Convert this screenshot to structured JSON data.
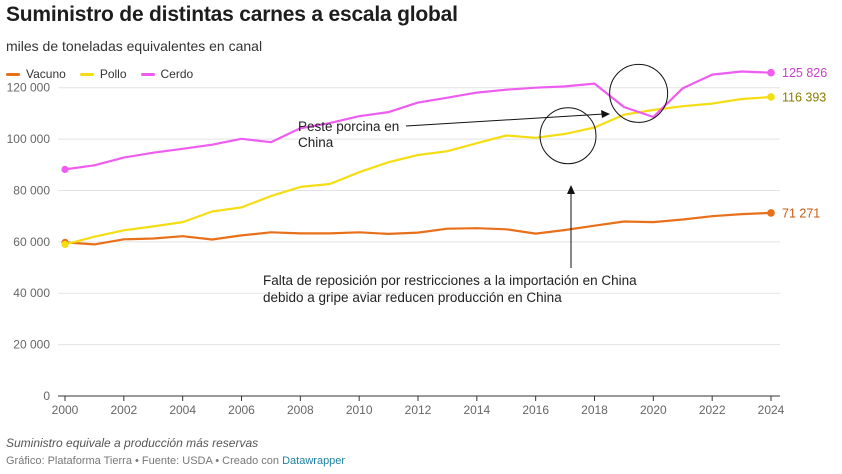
{
  "footer": {
    "note": "Suministro equivale a producción más reservas",
    "credit": "Gráfico: Plataforma Tierra • Fuente: USDA • Creado con ",
    "tool": "Datawrapper"
  },
  "chart_data": {
    "type": "line",
    "title": "Suministro de distintas carnes a escala global",
    "subtitle": "miles de toneladas equivalentes en canal",
    "x": [
      2000,
      2001,
      2002,
      2003,
      2004,
      2005,
      2006,
      2007,
      2008,
      2009,
      2010,
      2011,
      2012,
      2013,
      2014,
      2015,
      2016,
      2017,
      2018,
      2019,
      2020,
      2021,
      2022,
      2023,
      2024
    ],
    "ylim": [
      0,
      130000
    ],
    "xlim": [
      2000,
      2024
    ],
    "yticks": [
      0,
      20000,
      40000,
      60000,
      80000,
      100000,
      120000
    ],
    "ytick_labels": [
      "0",
      "20 000",
      "40 000",
      "60 000",
      "80 000",
      "100 000",
      "120 000"
    ],
    "xticks": [
      2000,
      2002,
      2004,
      2006,
      2008,
      2010,
      2012,
      2014,
      2016,
      2018,
      2020,
      2022,
      2024
    ],
    "xtick_labels": [
      "2000",
      "2002",
      "2004",
      "2006",
      "2008",
      "2010",
      "2012",
      "2014",
      "2016",
      "2018",
      "2020",
      "2022",
      "2024"
    ],
    "grid": "horizontal",
    "legend_position": "top-left",
    "series": [
      {
        "name": "Vacuno",
        "color": "#e8701a",
        "values": [
          59800,
          59000,
          61000,
          61300,
          62200,
          60900,
          62500,
          63700,
          63300,
          63300,
          63700,
          63100,
          63600,
          65100,
          65300,
          64900,
          63200,
          64600,
          66300,
          67900,
          67700,
          68700,
          70000,
          70800,
          71271
        ],
        "end_label": "71 271"
      },
      {
        "name": "Pollo",
        "color": "#f5dd14",
        "values": [
          59000,
          62000,
          64500,
          66000,
          67700,
          71800,
          73400,
          77800,
          81400,
          82500,
          87100,
          91000,
          93800,
          95300,
          98400,
          101400,
          100500,
          102000,
          104500,
          109500,
          111300,
          112800,
          113800,
          115600,
          116393
        ],
        "end_label": "116 393"
      },
      {
        "name": "Cerdo",
        "color": "#ee5cf0",
        "values": [
          88200,
          89800,
          92800,
          94700,
          96200,
          97800,
          100100,
          98800,
          104200,
          106200,
          108900,
          110500,
          114200,
          116100,
          118100,
          119200,
          120000,
          120500,
          121600,
          112500,
          108600,
          119800,
          125100,
          126300,
          125826
        ],
        "end_label": "125 826"
      }
    ],
    "annotations": [
      {
        "text_lines": [
          "Peste porcina en",
          "China"
        ],
        "circle_year": 2019.5,
        "circle_value": 117800
      },
      {
        "text_lines": [
          "Falta de reposición por restricciones a la importación en China",
          "debido a gripe aviar reducen producción en China"
        ],
        "circle_year": 2017.1,
        "circle_value": 101300
      }
    ]
  }
}
